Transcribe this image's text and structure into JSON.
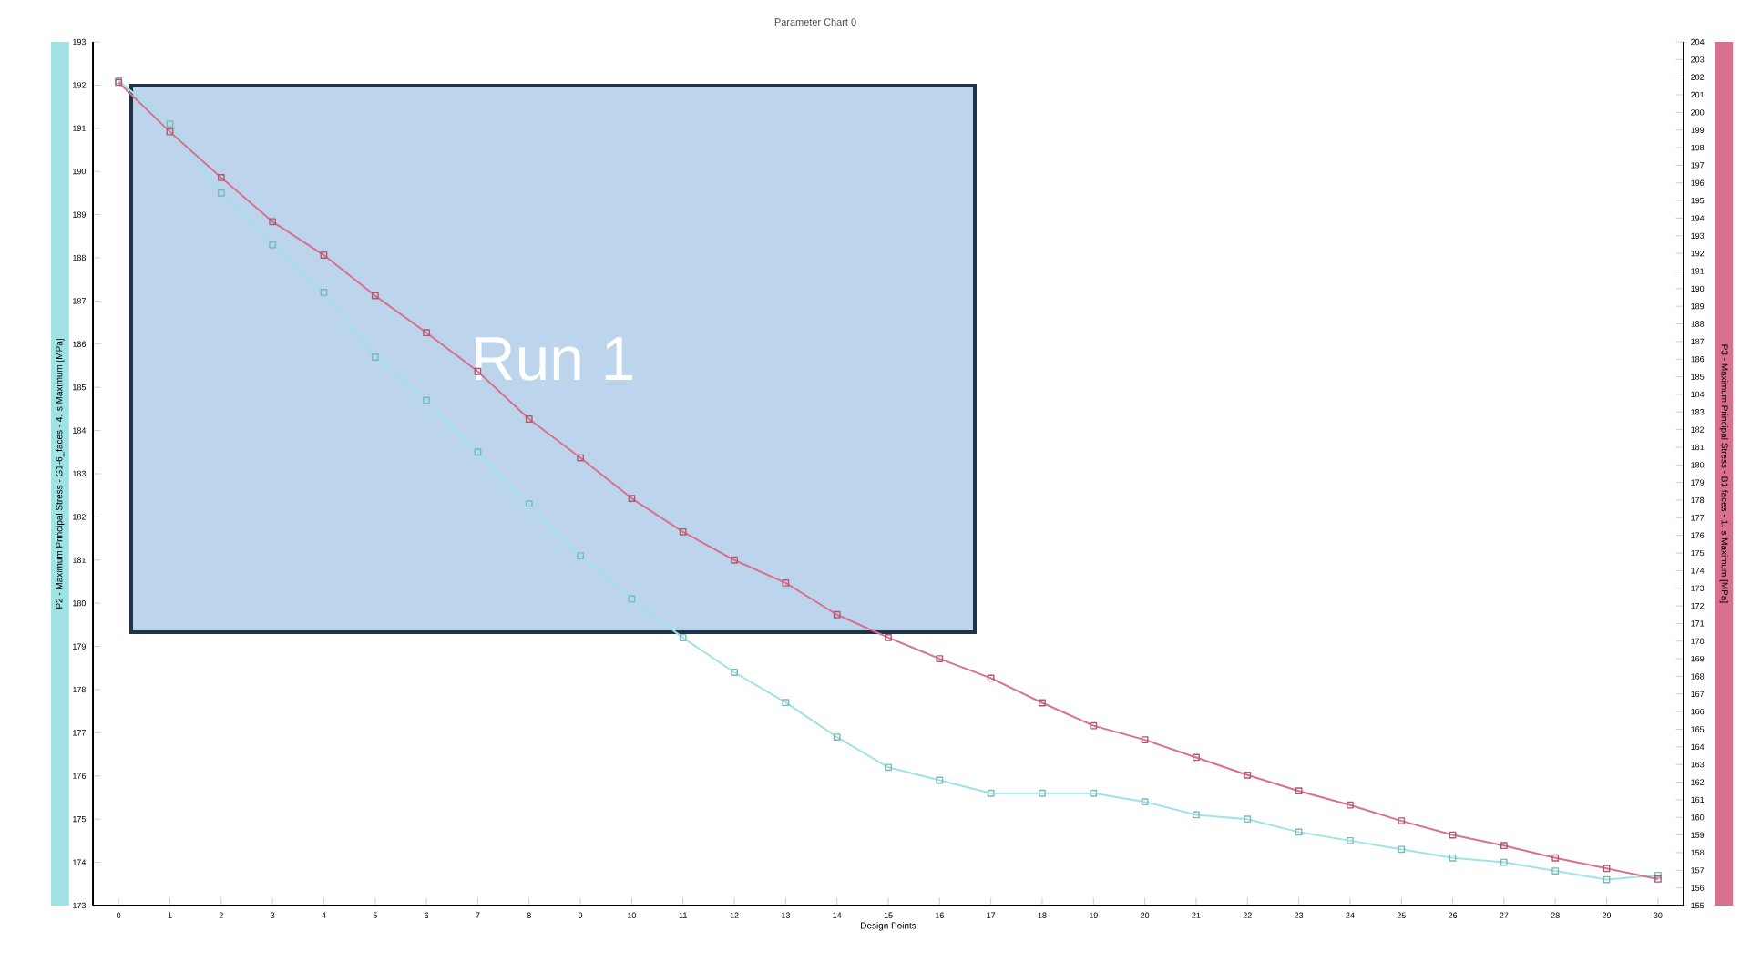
{
  "chart_data": {
    "type": "line",
    "title": "Parameter Chart 0",
    "xlabel": "Design Points",
    "ylabel": "P2 - Maximum Principal Stress - G1-6_faces - 4. s Maximum  [MPa]",
    "y2label": "P3 - Maximum Principal Stress - B1 faces - 1. s Maximum  [MPa]",
    "annotations": [
      "Run 1"
    ],
    "marker": "square",
    "x": [
      0,
      1,
      2,
      3,
      4,
      5,
      6,
      7,
      8,
      9,
      10,
      11,
      12,
      13,
      14,
      15,
      16,
      17,
      18,
      19,
      20,
      21,
      22,
      23,
      24,
      25,
      26,
      27,
      28,
      29,
      30
    ],
    "xlim": [
      -0.5,
      30.5
    ],
    "xticks": [
      0,
      1,
      2,
      3,
      4,
      5,
      6,
      7,
      8,
      9,
      10,
      11,
      12,
      13,
      14,
      15,
      16,
      17,
      18,
      19,
      20,
      21,
      22,
      23,
      24,
      25,
      26,
      27,
      28,
      29,
      30
    ],
    "ylim": [
      173,
      193
    ],
    "yticks": [
      173,
      174,
      175,
      176,
      177,
      178,
      179,
      180,
      181,
      182,
      183,
      184,
      185,
      186,
      187,
      188,
      189,
      190,
      191,
      192,
      193
    ],
    "y2lim": [
      155,
      204
    ],
    "y2ticks": [
      155,
      156,
      157,
      158,
      159,
      160,
      161,
      162,
      163,
      164,
      165,
      166,
      167,
      168,
      169,
      170,
      171,
      172,
      173,
      174,
      175,
      176,
      177,
      178,
      179,
      180,
      181,
      182,
      183,
      184,
      185,
      186,
      187,
      188,
      189,
      190,
      191,
      192,
      193,
      194,
      195,
      196,
      197,
      198,
      199,
      200,
      201,
      202,
      203,
      204
    ],
    "series": [
      {
        "color": "#9fe3e6",
        "values": [
          192.1,
          191.1,
          189.5,
          188.3,
          187.2,
          185.7,
          184.7,
          183.5,
          182.3,
          181.1,
          180.1,
          179.2,
          178.4,
          177.7,
          176.9,
          176.2,
          175.9,
          175.6,
          175.6,
          175.6,
          175.4,
          175.1,
          175.0,
          174.7,
          174.5,
          174.3,
          174.1,
          174.0,
          173.8,
          173.6,
          173.7
        ]
      },
      {
        "color": "#d9708e",
        "axis": "y2",
        "values": [
          201.7,
          198.9,
          196.3,
          193.8,
          191.9,
          189.6,
          187.5,
          185.3,
          182.6,
          180.4,
          178.1,
          176.2,
          174.6,
          173.3,
          171.5,
          170.2,
          169.0,
          167.9,
          166.5,
          165.2,
          164.4,
          163.4,
          162.4,
          161.5,
          160.7,
          159.8,
          159.0,
          158.4,
          157.7,
          157.1,
          156.5
        ]
      }
    ]
  }
}
